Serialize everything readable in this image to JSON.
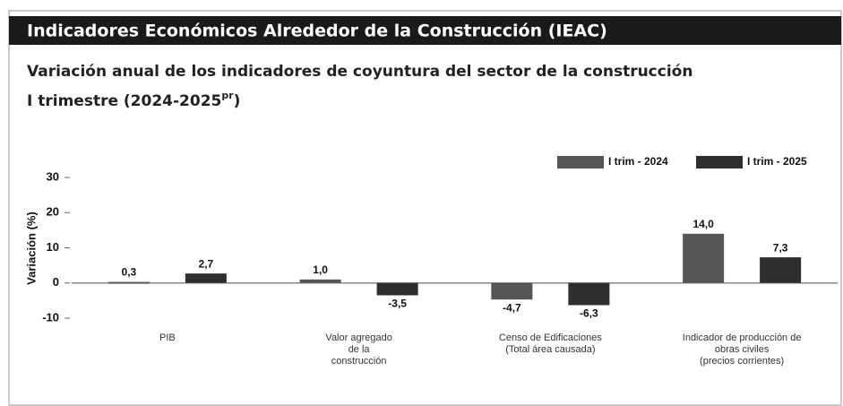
{
  "header": "Indicadores Económicos Alrededor de la Construcción (IEAC)",
  "chart_data": {
    "type": "bar",
    "title": "Variación anual de los indicadores de coyuntura del sector de la construcción",
    "subtitle": "I trimestre (2024-2025",
    "subtitle_superscript": "pr",
    "subtitle_end": ")",
    "y_label": "Variación (%)",
    "categories": [
      "PIB",
      "Valor agregado\nde la\nconstrucción",
      "Censo de Edificaciones\n(Total área causada)",
      "Indicador de producción de\nobras civiles\n(precios corrientes)"
    ],
    "series": [
      {
        "name": "I trim - 2024",
        "color": "#555555",
        "values": [
          0.3,
          1.0,
          -4.7,
          14.0
        ],
        "value_labels": [
          "0,3",
          "1,0",
          "-4,7",
          "14,0"
        ]
      },
      {
        "name": "I trim - 2025",
        "color": "#2e2e2e",
        "values": [
          2.7,
          -3.5,
          -6.3,
          7.3
        ],
        "value_labels": [
          "2,7",
          "-3,5",
          "-6,3",
          "7,3"
        ]
      }
    ],
    "ylim": [
      -10,
      30
    ],
    "yticks": [
      -10,
      0,
      10,
      20,
      30
    ],
    "legend": "top-right"
  }
}
